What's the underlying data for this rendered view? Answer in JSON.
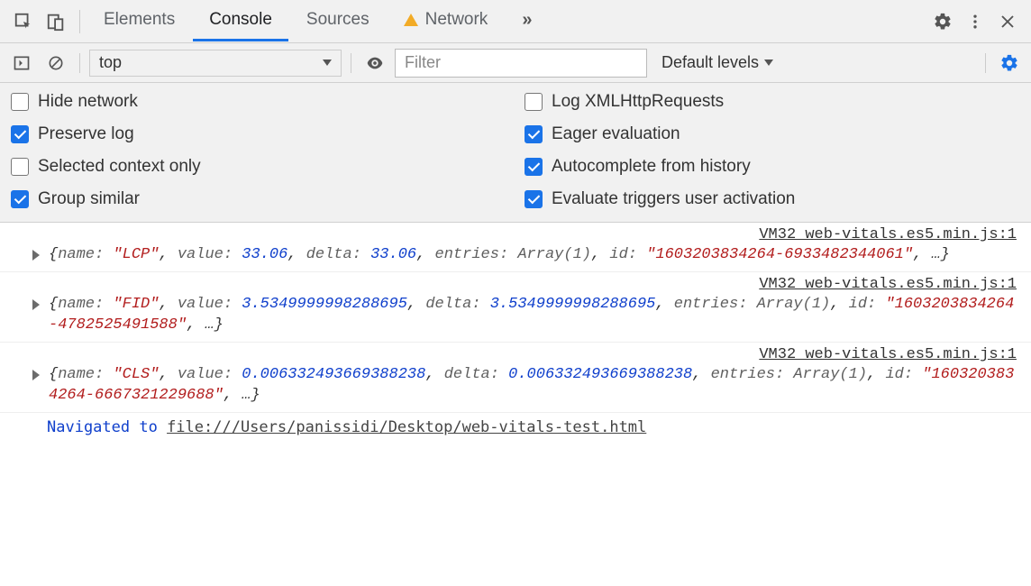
{
  "tabs": {
    "items": [
      "Elements",
      "Console",
      "Sources",
      "Network"
    ],
    "active_index": 1,
    "network_has_warning": true
  },
  "toolbar": {
    "context": "top",
    "filter_placeholder": "Filter",
    "levels_label": "Default levels"
  },
  "settings": {
    "left": [
      {
        "label": "Hide network",
        "checked": false
      },
      {
        "label": "Preserve log",
        "checked": true
      },
      {
        "label": "Selected context only",
        "checked": false
      },
      {
        "label": "Group similar",
        "checked": true
      }
    ],
    "right": [
      {
        "label": "Log XMLHttpRequests",
        "checked": false
      },
      {
        "label": "Eager evaluation",
        "checked": true
      },
      {
        "label": "Autocomplete from history",
        "checked": true
      },
      {
        "label": "Evaluate triggers user activation",
        "checked": true
      }
    ]
  },
  "logs": [
    {
      "source": "VM32 web-vitals.es5.min.js:1",
      "props": [
        {
          "k": "name",
          "t": "str",
          "v": "\"LCP\""
        },
        {
          "k": "value",
          "t": "num",
          "v": "33.06"
        },
        {
          "k": "delta",
          "t": "num",
          "v": "33.06"
        },
        {
          "k": "entries",
          "t": "gen",
          "v": "Array(1)"
        },
        {
          "k": "id",
          "t": "str",
          "v": "\"1603203834264-6933482344061\""
        }
      ]
    },
    {
      "source": "VM32 web-vitals.es5.min.js:1",
      "props": [
        {
          "k": "name",
          "t": "str",
          "v": "\"FID\""
        },
        {
          "k": "value",
          "t": "num",
          "v": "3.5349999998288695"
        },
        {
          "k": "delta",
          "t": "num",
          "v": "3.5349999998288695"
        },
        {
          "k": "entries",
          "t": "gen",
          "v": "Array(1)"
        },
        {
          "k": "id",
          "t": "str",
          "v": "\"1603203834264-4782525491588\""
        }
      ]
    },
    {
      "source": "VM32 web-vitals.es5.min.js:1",
      "props": [
        {
          "k": "name",
          "t": "str",
          "v": "\"CLS\""
        },
        {
          "k": "value",
          "t": "num",
          "v": "0.006332493669388238"
        },
        {
          "k": "delta",
          "t": "num",
          "v": "0.006332493669388238"
        },
        {
          "k": "entries",
          "t": "gen",
          "v": "Array(1)"
        },
        {
          "k": "id",
          "t": "str",
          "v": "\"1603203834264-6667321229688\""
        }
      ]
    }
  ],
  "navigation": {
    "prefix": "Navigated to ",
    "url": "file:///Users/panissidi/Desktop/web-vitals-test.html"
  },
  "colors": {
    "accent": "#1a73e8",
    "warn": "#f2ab26",
    "string": "#b21d1d",
    "number": "#1040cc",
    "toolbar_bg": "#f1f1f1",
    "border": "#d0d0d0"
  }
}
